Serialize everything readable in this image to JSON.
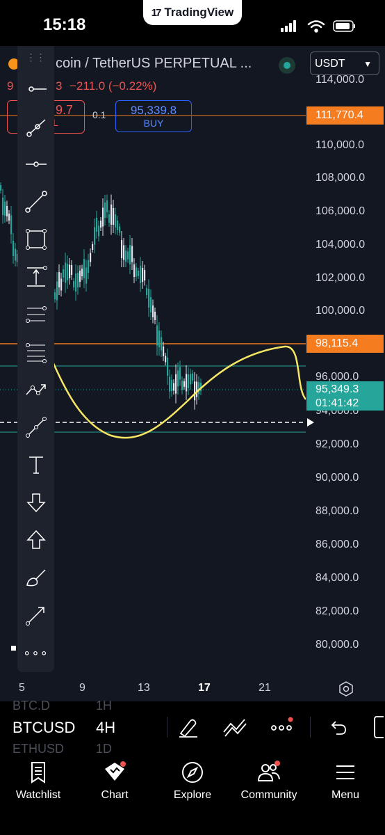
{
  "status_bar": {
    "time": "15:18",
    "app_badge": "TradingView",
    "logo_glyph": "17"
  },
  "header": {
    "symbol": "coin / TetherUS PERPETUAL ...",
    "currency": "USDT",
    "change_prefix": "9",
    "change_mid": "3",
    "change": "−211.0 (−0.22%)",
    "sell_value": "9.7",
    "sell_suffix": "L",
    "spread": "0.1",
    "buy_value": "95,339.8",
    "buy_label": "BUY"
  },
  "price_axis": {
    "labels": [
      "114,000.0",
      "110,000.0",
      "108,000.0",
      "106,000.0",
      "104,000.0",
      "102,000.0",
      "100,000.0",
      "96,000.0",
      "94,000.0",
      "92,000.0",
      "90,000.0",
      "88,000.0",
      "86,000.0",
      "84,000.0",
      "82,000.0",
      "80,000.0"
    ],
    "tag_high": "111,770.4",
    "tag_mid": "98,115.4",
    "tag_last": "95,349.3",
    "tag_timer": "01:41:42"
  },
  "time_axis": {
    "labels": [
      "5",
      "9",
      "13",
      "17",
      "21"
    ]
  },
  "toolbar": {
    "handle": "⋮⋮",
    "more": "∘∘∘"
  },
  "chart_bar": {
    "ticker": "BTCUSD",
    "timeframe": "4H",
    "ghost_above_ticker": "BTC.D",
    "ghost_above_tf": "1H",
    "ghost_below_ticker": "ETHUSD",
    "ghost_below_tf": "1D"
  },
  "nav": {
    "items": [
      "Watchlist",
      "Chart",
      "Explore",
      "Community",
      "Menu"
    ]
  },
  "colors": {
    "bg": "#131722",
    "up": "#26a69a",
    "down": "#ef5350",
    "orange": "#f57c1f",
    "yellow": "#f5e663",
    "teal_line": "#26a69a"
  }
}
